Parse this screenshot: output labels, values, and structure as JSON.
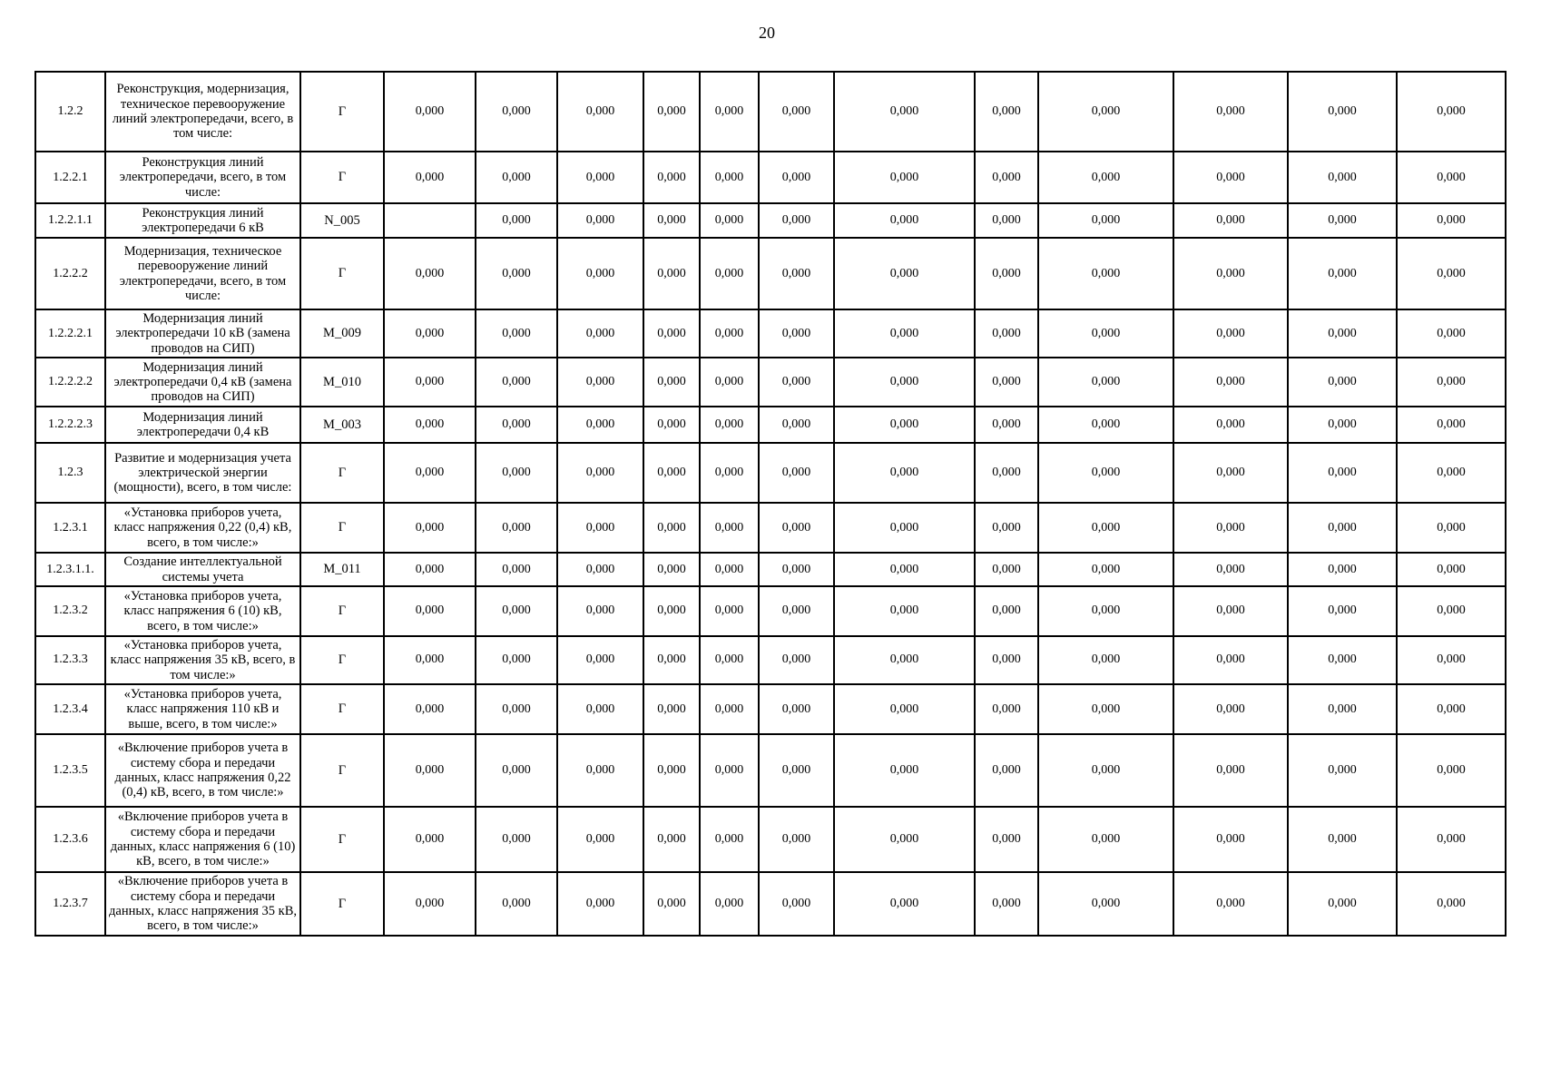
{
  "page": {
    "number": "20"
  },
  "table": {
    "rows": [
      {
        "num": "1.2.2",
        "description": "Реконструкция, модернизация, техническое перевооружение линий электропередачи, всего, в том числе:",
        "code": "Г",
        "values": [
          "0,000",
          "0,000",
          "0,000",
          "0,000",
          "0,000",
          "0,000",
          "0,000",
          "0,000",
          "0,000",
          "0,000",
          "0,000",
          "0,000"
        ]
      },
      {
        "num": "1.2.2.1",
        "description": "Реконструкция линий электропередачи, всего, в том числе:",
        "code": "Г",
        "values": [
          "0,000",
          "0,000",
          "0,000",
          "0,000",
          "0,000",
          "0,000",
          "0,000",
          "0,000",
          "0,000",
          "0,000",
          "0,000",
          "0,000"
        ]
      },
      {
        "num": "1.2.2.1.1",
        "description": "Реконструкция линий электропередачи 6 кВ",
        "code": "N_005",
        "values": [
          "",
          "0,000",
          "0,000",
          "0,000",
          "0,000",
          "0,000",
          "0,000",
          "0,000",
          "0,000",
          "0,000",
          "0,000",
          "0,000"
        ]
      },
      {
        "num": "1.2.2.2",
        "description": "Модернизация, техническое перевооружение линий электропередачи, всего, в том числе:",
        "code": "Г",
        "values": [
          "0,000",
          "0,000",
          "0,000",
          "0,000",
          "0,000",
          "0,000",
          "0,000",
          "0,000",
          "0,000",
          "0,000",
          "0,000",
          "0,000"
        ]
      },
      {
        "num": "1.2.2.2.1",
        "description": "Модернизация линий электропередачи 10 кВ (замена проводов на СИП)",
        "code": "M_009",
        "values": [
          "0,000",
          "0,000",
          "0,000",
          "0,000",
          "0,000",
          "0,000",
          "0,000",
          "0,000",
          "0,000",
          "0,000",
          "0,000",
          "0,000"
        ]
      },
      {
        "num": "1.2.2.2.2",
        "description": "Модернизация линий электропередачи 0,4 кВ (замена проводов на СИП)",
        "code": "M_010",
        "values": [
          "0,000",
          "0,000",
          "0,000",
          "0,000",
          "0,000",
          "0,000",
          "0,000",
          "0,000",
          "0,000",
          "0,000",
          "0,000",
          "0,000"
        ]
      },
      {
        "num": "1.2.2.2.3",
        "description": "Модернизация линий электропередачи 0,4 кВ",
        "code": "M_003",
        "values": [
          "0,000",
          "0,000",
          "0,000",
          "0,000",
          "0,000",
          "0,000",
          "0,000",
          "0,000",
          "0,000",
          "0,000",
          "0,000",
          "0,000"
        ]
      },
      {
        "num": "1.2.3",
        "description": "Развитие и модернизация учета электрической энергии (мощности), всего, в том числе:",
        "code": "Г",
        "values": [
          "0,000",
          "0,000",
          "0,000",
          "0,000",
          "0,000",
          "0,000",
          "0,000",
          "0,000",
          "0,000",
          "0,000",
          "0,000",
          "0,000"
        ]
      },
      {
        "num": "1.2.3.1",
        "description": "«Установка приборов учета, класс напряжения 0,22 (0,4) кВ, всего, в том числе:»",
        "code": "Г",
        "values": [
          "0,000",
          "0,000",
          "0,000",
          "0,000",
          "0,000",
          "0,000",
          "0,000",
          "0,000",
          "0,000",
          "0,000",
          "0,000",
          "0,000"
        ]
      },
      {
        "num": "1.2.3.1.1.",
        "description": "Создание интеллектуальной системы учета",
        "code": "M_011",
        "values": [
          "0,000",
          "0,000",
          "0,000",
          "0,000",
          "0,000",
          "0,000",
          "0,000",
          "0,000",
          "0,000",
          "0,000",
          "0,000",
          "0,000"
        ]
      },
      {
        "num": "1.2.3.2",
        "description": "«Установка приборов учета, класс напряжения 6 (10) кВ, всего, в том числе:»",
        "code": "Г",
        "values": [
          "0,000",
          "0,000",
          "0,000",
          "0,000",
          "0,000",
          "0,000",
          "0,000",
          "0,000",
          "0,000",
          "0,000",
          "0,000",
          "0,000"
        ]
      },
      {
        "num": "1.2.3.3",
        "description": "«Установка приборов учета, класс напряжения 35 кВ, всего, в том числе:»",
        "code": "Г",
        "values": [
          "0,000",
          "0,000",
          "0,000",
          "0,000",
          "0,000",
          "0,000",
          "0,000",
          "0,000",
          "0,000",
          "0,000",
          "0,000",
          "0,000"
        ]
      },
      {
        "num": "1.2.3.4",
        "description": "«Установка приборов учета, класс напряжения 110 кВ и выше, всего, в том числе:»",
        "code": "Г",
        "values": [
          "0,000",
          "0,000",
          "0,000",
          "0,000",
          "0,000",
          "0,000",
          "0,000",
          "0,000",
          "0,000",
          "0,000",
          "0,000",
          "0,000"
        ]
      },
      {
        "num": "1.2.3.5",
        "description": "«Включение приборов учета в систему сбора и передачи данных, класс напряжения 0,22 (0,4) кВ, всего, в том числе:»",
        "code": "Г",
        "values": [
          "0,000",
          "0,000",
          "0,000",
          "0,000",
          "0,000",
          "0,000",
          "0,000",
          "0,000",
          "0,000",
          "0,000",
          "0,000",
          "0,000"
        ]
      },
      {
        "num": "1.2.3.6",
        "description": "«Включение приборов учета в систему сбора и передачи данных, класс напряжения 6 (10) кВ, всего, в том числе:»",
        "code": "Г",
        "values": [
          "0,000",
          "0,000",
          "0,000",
          "0,000",
          "0,000",
          "0,000",
          "0,000",
          "0,000",
          "0,000",
          "0,000",
          "0,000",
          "0,000"
        ]
      },
      {
        "num": "1.2.3.7",
        "description": "«Включение приборов учета в систему сбора и передачи данных, класс напряжения 35 кВ, всего, в том числе:»",
        "code": "Г",
        "values": [
          "0,000",
          "0,000",
          "0,000",
          "0,000",
          "0,000",
          "0,000",
          "0,000",
          "0,000",
          "0,000",
          "0,000",
          "0,000",
          "0,000"
        ]
      }
    ]
  }
}
